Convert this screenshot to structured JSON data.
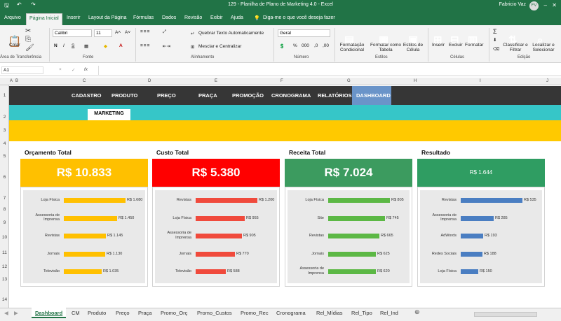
{
  "title": "129 - Planilha de Plano de Marketing 4.0  -  Excel",
  "user": {
    "name": "Fabricio Vaz",
    "initials": "FV"
  },
  "menu": [
    "Arquivo",
    "Página Inicial",
    "Inserir",
    "Layout da Página",
    "Fórmulas",
    "Dados",
    "Revisão",
    "Exibir",
    "Ajuda"
  ],
  "tell_me": "Diga-me o que você deseja fazer",
  "ribbon": {
    "paste": "Colar",
    "clipboard": "Área de Transferência",
    "font_name": "Calibri",
    "font_size": "11",
    "font_group": "Fonte",
    "wrap_text": "Quebrar Texto Automaticamente",
    "merge_center": "Mesclar e Centralizar",
    "alignment_group": "Alinhamento",
    "number_format": "Geral",
    "number_group": "Número",
    "cond_format": "Formatação Condicional",
    "format_table": "Formatar como Tabela",
    "cell_styles": "Estilos de Célula",
    "styles_group": "Estilos",
    "insert": "Inserir",
    "delete": "Excluir",
    "format": "Formatar",
    "cells_group": "Células",
    "sort_filter": "Classificar e Filtrar",
    "find_select": "Localizar e Selecionar",
    "editing_group": "Edição"
  },
  "name_box": "A1",
  "formula_icons": {
    "cancel": "×",
    "enter": "✓",
    "fx": "fx"
  },
  "columns": [
    "A",
    "B",
    "C",
    "D",
    "E",
    "F",
    "G",
    "H",
    "I",
    "J"
  ],
  "rows": [
    "1",
    "2",
    "3",
    "4",
    "5",
    "6",
    "7",
    "8",
    "9",
    "10",
    "11",
    "12",
    "13",
    "14"
  ],
  "nav": [
    "CADASTRO",
    "PRODUTO",
    "PREÇO",
    "PRAÇA",
    "PROMOÇÃO",
    "CRONOGRAMA",
    "RELATÓRIOS",
    "DASHBOARD"
  ],
  "sub_button": "MARKETING",
  "colors": {
    "yellow": "#ffc000",
    "red": "#ff0000",
    "green": "#3c9b5f",
    "blue": "#4472c4",
    "dark_green": "#2f9d62"
  },
  "panels": [
    {
      "title": "Orçamento Total",
      "value": "R$ 10.833",
      "bar_color": "#ffc000",
      "header_color": "#ffc000",
      "chart_data": {
        "type": "bar",
        "categories": [
          "Loja Física",
          "Assessoria de Imprensa",
          "Revistas",
          "Jornais",
          "Televisão"
        ],
        "values": [
          1680,
          1450,
          1145,
          1130,
          1035
        ],
        "labels": [
          "R$ 1.680",
          "R$ 1.450",
          "R$ 1.145",
          "R$ 1.130",
          "R$ 1.035"
        ]
      }
    },
    {
      "title": "Custo Total",
      "value": "R$ 5.380",
      "bar_color": "#f04a3c",
      "header_color": "#ff0000",
      "chart_data": {
        "type": "bar",
        "categories": [
          "Revistas",
          "Loja Física",
          "Assessoria de Imprensa",
          "Jornais",
          "Televisão"
        ],
        "values": [
          1200,
          955,
          905,
          770,
          588
        ],
        "labels": [
          "R$ 1.200",
          "R$ 955",
          "R$ 905",
          "R$ 770",
          "R$ 588"
        ]
      }
    },
    {
      "title": "Receita Total",
      "value": "R$ 7.024",
      "bar_color": "#5cb845",
      "header_color": "#3c9b5f",
      "chart_data": {
        "type": "bar",
        "categories": [
          "Loja Física",
          "Site",
          "Revistas",
          "Jornais",
          "Assessoria de Imprensa"
        ],
        "values": [
          805,
          745,
          665,
          625,
          620
        ],
        "labels": [
          "R$ 805",
          "R$ 745",
          "R$ 665",
          "R$ 625",
          "R$ 620"
        ]
      }
    },
    {
      "title": "Resultado",
      "value": "R$ 1.644",
      "bar_color": "#4a7ec2",
      "header_color": "#2f9d62",
      "chart_data": {
        "type": "bar",
        "categories": [
          "Revistas",
          "Assessoria de Imprensa",
          "AdWords",
          "Redes Sociais",
          "Loja Física"
        ],
        "values": [
          535,
          285,
          193,
          188,
          150
        ],
        "labels": [
          "R$ 535",
          "R$ 285",
          "R$ 193",
          "R$ 188",
          "R$ 150"
        ]
      }
    }
  ],
  "sheet_tabs": [
    "Dashboard",
    "CM",
    "Produto",
    "Preço",
    "Praça",
    "Promo_Orç",
    "Promo_Custos",
    "Promo_Rec",
    "Cronograma",
    "Rel_Mídias",
    "Rel_Tipo",
    "Rel_Ind"
  ]
}
